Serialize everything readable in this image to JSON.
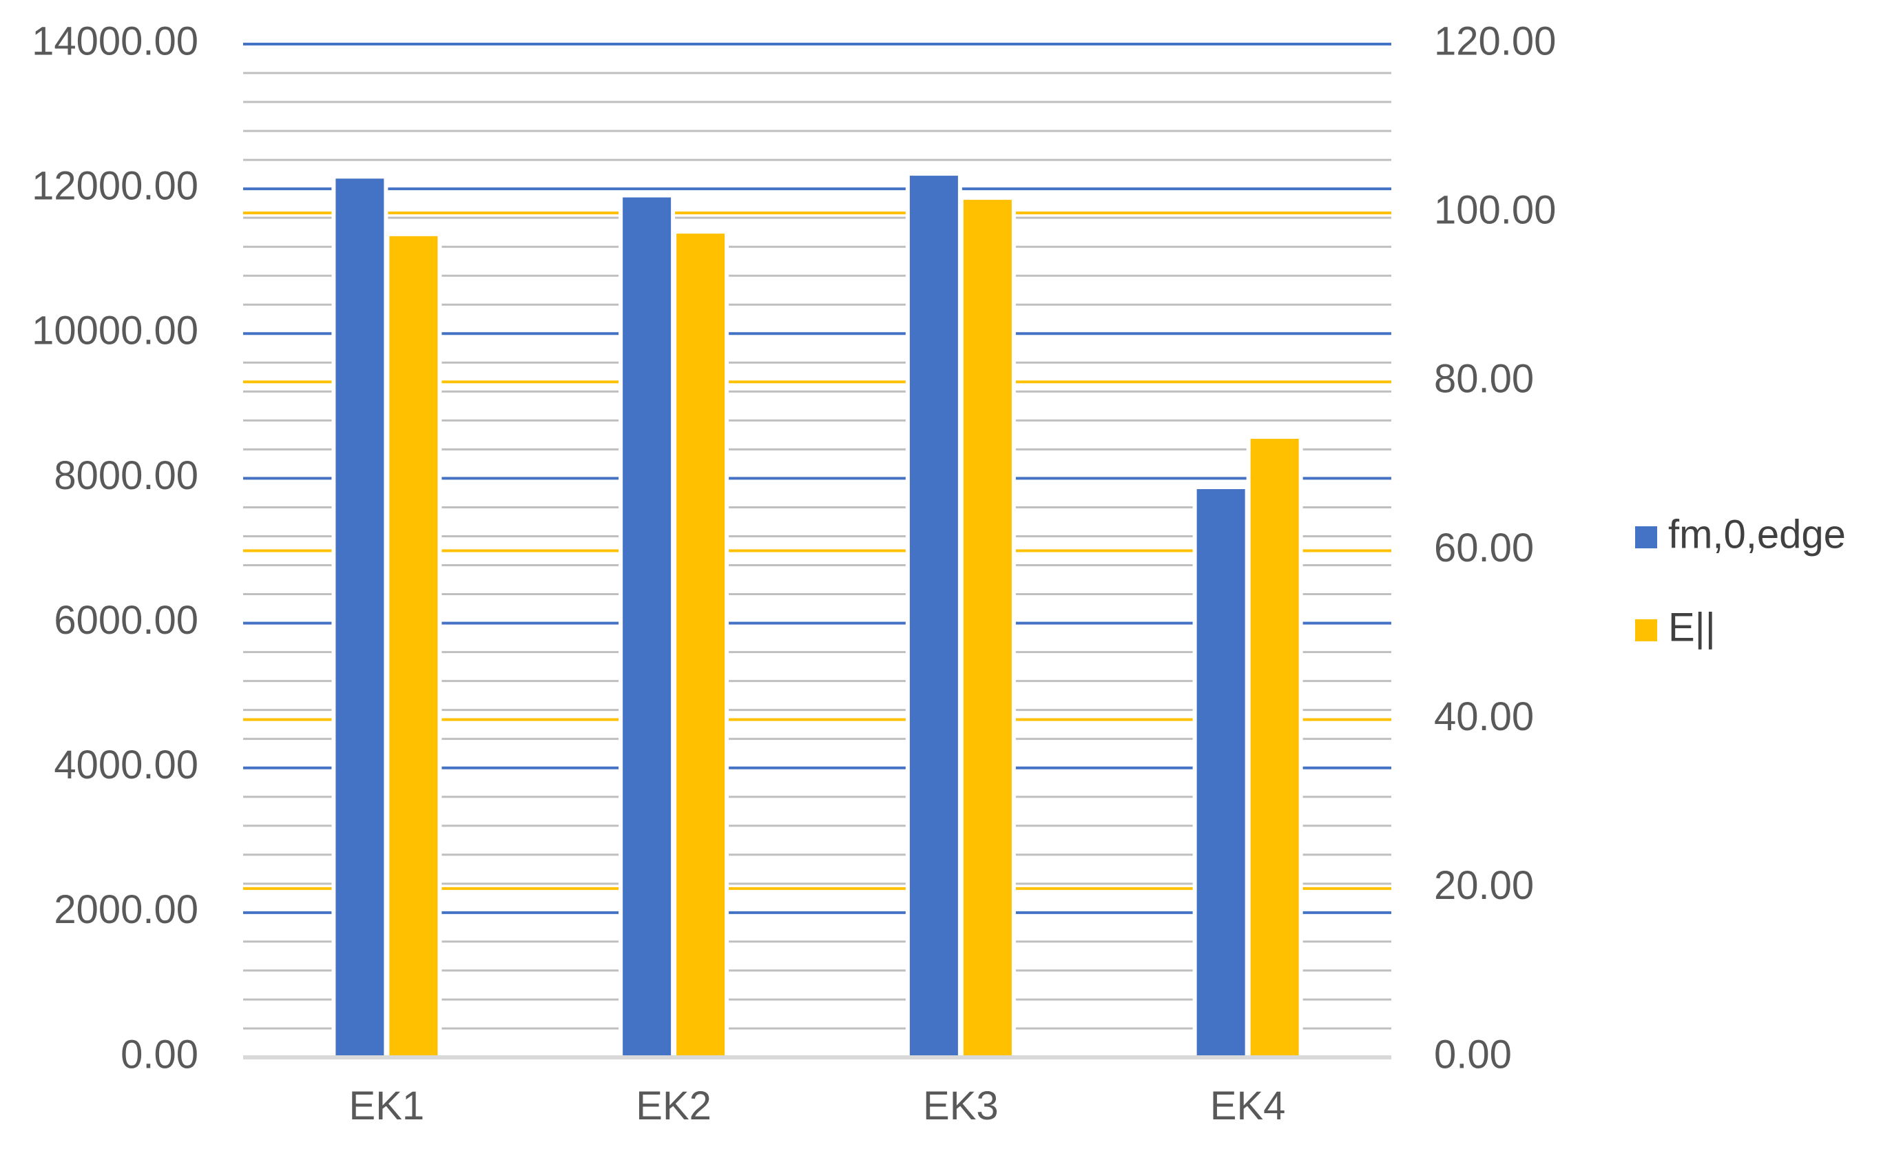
{
  "chart_data": {
    "type": "bar",
    "categories": [
      "EK1",
      "EK2",
      "EK3",
      "EK4"
    ],
    "series": [
      {
        "name": "fm,0,edge",
        "axis": "left",
        "color": "#4472C4",
        "values": [
          12170,
          11910,
          12210,
          7880
        ]
      },
      {
        "name": "E||",
        "axis": "right",
        "color": "#FFC000",
        "values": [
          97.5,
          97.8,
          101.8,
          73.5
        ]
      }
    ],
    "y_left": {
      "min": 0,
      "max": 14000,
      "step": 2000,
      "tick_labels": [
        "0.00",
        "2000.00",
        "4000.00",
        "6000.00",
        "8000.00",
        "10000.00",
        "12000.00",
        "14000.00"
      ]
    },
    "y_right": {
      "min": 0,
      "max": 120,
      "step": 20,
      "tick_labels": [
        "0.00",
        "20.00",
        "40.00",
        "60.00",
        "80.00",
        "100.00",
        "120.00"
      ]
    },
    "grid": true,
    "legend_position": "right",
    "gridline_colors": {
      "left_major": "#4472C4",
      "right_major": "#FFC000",
      "minor": "#BFBFBF",
      "baseline": "#D9D9D9"
    }
  }
}
